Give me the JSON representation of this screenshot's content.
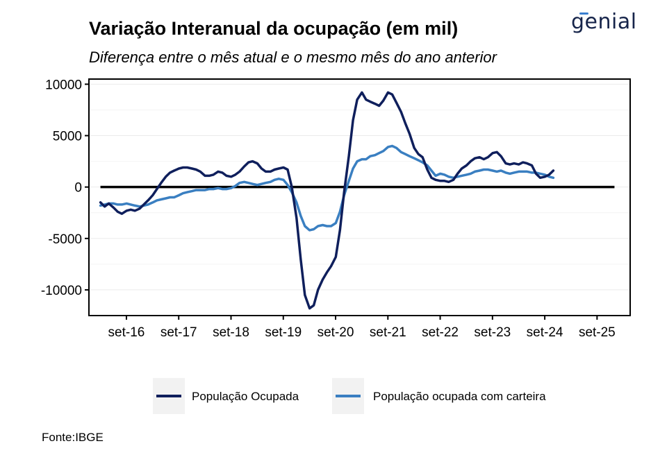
{
  "brand": {
    "logo_text": "genial",
    "accent": "#3a7fd0",
    "dark": "#16244a"
  },
  "source": "Fonte:IBGE",
  "chart_data": {
    "type": "line",
    "title": "Variação Interanual da ocupação (em mil)",
    "subtitle": "Diferença entre o mês atual e o mesmo mês do ano anterior",
    "xlabel": "",
    "ylabel": "",
    "ylim": [
      -12500,
      10500
    ],
    "xlim": [
      2015.95,
      2026.3
    ],
    "y_ticks": [
      10000,
      5000,
      0,
      -5000,
      -10000
    ],
    "y_tick_labels": [
      "10000",
      "5000",
      "0",
      "-5000",
      "-10000"
    ],
    "x_ticks": [
      2016.667,
      2017.667,
      2018.667,
      2019.667,
      2020.667,
      2021.667,
      2022.667,
      2023.667,
      2024.667,
      2025.667
    ],
    "x_tick_labels": [
      "set-16",
      "set-17",
      "set-18",
      "set-19",
      "set-20",
      "set-21",
      "set-22",
      "set-23",
      "set-24",
      "set-25"
    ],
    "reference_line": {
      "y": 0,
      "x_start": 2016.17,
      "x_end": 2026.0
    },
    "grid": true,
    "legend_position": "bottom",
    "series": [
      {
        "name": "População Ocupada",
        "color": "#0f1f5c",
        "points": [
          [
            2016.17,
            -1500
          ],
          [
            2016.25,
            -1900
          ],
          [
            2016.33,
            -1600
          ],
          [
            2016.42,
            -2000
          ],
          [
            2016.5,
            -2400
          ],
          [
            2016.58,
            -2600
          ],
          [
            2016.67,
            -2300
          ],
          [
            2016.75,
            -2200
          ],
          [
            2016.83,
            -2300
          ],
          [
            2016.92,
            -2100
          ],
          [
            2017.0,
            -1700
          ],
          [
            2017.08,
            -1300
          ],
          [
            2017.17,
            -800
          ],
          [
            2017.25,
            -200
          ],
          [
            2017.33,
            400
          ],
          [
            2017.42,
            1000
          ],
          [
            2017.5,
            1400
          ],
          [
            2017.58,
            1600
          ],
          [
            2017.67,
            1800
          ],
          [
            2017.75,
            1900
          ],
          [
            2017.83,
            1900
          ],
          [
            2017.92,
            1800
          ],
          [
            2018.0,
            1700
          ],
          [
            2018.08,
            1500
          ],
          [
            2018.17,
            1100
          ],
          [
            2018.25,
            1100
          ],
          [
            2018.33,
            1200
          ],
          [
            2018.42,
            1500
          ],
          [
            2018.5,
            1400
          ],
          [
            2018.58,
            1100
          ],
          [
            2018.67,
            1000
          ],
          [
            2018.75,
            1200
          ],
          [
            2018.83,
            1500
          ],
          [
            2018.92,
            2000
          ],
          [
            2019.0,
            2400
          ],
          [
            2019.08,
            2500
          ],
          [
            2019.17,
            2300
          ],
          [
            2019.25,
            1800
          ],
          [
            2019.33,
            1500
          ],
          [
            2019.42,
            1500
          ],
          [
            2019.5,
            1700
          ],
          [
            2019.58,
            1800
          ],
          [
            2019.67,
            1900
          ],
          [
            2019.75,
            1700
          ],
          [
            2019.83,
            0
          ],
          [
            2019.92,
            -3000
          ],
          [
            2020.0,
            -7000
          ],
          [
            2020.08,
            -10500
          ],
          [
            2020.17,
            -11800
          ],
          [
            2020.25,
            -11500
          ],
          [
            2020.33,
            -10000
          ],
          [
            2020.42,
            -9000
          ],
          [
            2020.5,
            -8300
          ],
          [
            2020.58,
            -7700
          ],
          [
            2020.67,
            -6800
          ],
          [
            2020.75,
            -4200
          ],
          [
            2020.83,
            -500
          ],
          [
            2020.92,
            3000
          ],
          [
            2021.0,
            6500
          ],
          [
            2021.08,
            8500
          ],
          [
            2021.17,
            9200
          ],
          [
            2021.25,
            8500
          ],
          [
            2021.33,
            8300
          ],
          [
            2021.42,
            8100
          ],
          [
            2021.5,
            7900
          ],
          [
            2021.58,
            8400
          ],
          [
            2021.67,
            9200
          ],
          [
            2021.75,
            9000
          ],
          [
            2021.83,
            8200
          ],
          [
            2021.92,
            7300
          ],
          [
            2022.0,
            6200
          ],
          [
            2022.08,
            5200
          ],
          [
            2022.17,
            3800
          ],
          [
            2022.25,
            3200
          ],
          [
            2022.33,
            2900
          ],
          [
            2022.42,
            1700
          ],
          [
            2022.5,
            900
          ],
          [
            2022.58,
            700
          ],
          [
            2022.67,
            600
          ],
          [
            2022.75,
            600
          ],
          [
            2022.83,
            500
          ],
          [
            2022.92,
            700
          ],
          [
            2023.0,
            1300
          ],
          [
            2023.08,
            1800
          ],
          [
            2023.17,
            2100
          ],
          [
            2023.25,
            2500
          ],
          [
            2023.33,
            2800
          ],
          [
            2023.42,
            2900
          ],
          [
            2023.5,
            2700
          ],
          [
            2023.58,
            2900
          ],
          [
            2023.67,
            3300
          ],
          [
            2023.75,
            3400
          ],
          [
            2023.83,
            3000
          ],
          [
            2023.92,
            2300
          ],
          [
            2024.0,
            2200
          ],
          [
            2024.08,
            2300
          ],
          [
            2024.17,
            2200
          ],
          [
            2024.25,
            2400
          ],
          [
            2024.33,
            2300
          ],
          [
            2024.42,
            2100
          ],
          [
            2024.5,
            1300
          ],
          [
            2024.58,
            900
          ],
          [
            2024.67,
            1000
          ],
          [
            2024.75,
            1200
          ],
          [
            2024.83,
            1600
          ]
        ]
      },
      {
        "name": "População ocupada com carteira",
        "color": "#3a7fc1",
        "points": [
          [
            2016.17,
            -1800
          ],
          [
            2016.25,
            -1700
          ],
          [
            2016.33,
            -1600
          ],
          [
            2016.42,
            -1600
          ],
          [
            2016.5,
            -1700
          ],
          [
            2016.58,
            -1700
          ],
          [
            2016.67,
            -1600
          ],
          [
            2016.75,
            -1700
          ],
          [
            2016.83,
            -1800
          ],
          [
            2016.92,
            -1900
          ],
          [
            2017.0,
            -1800
          ],
          [
            2017.08,
            -1700
          ],
          [
            2017.17,
            -1500
          ],
          [
            2017.25,
            -1300
          ],
          [
            2017.33,
            -1200
          ],
          [
            2017.42,
            -1100
          ],
          [
            2017.5,
            -1000
          ],
          [
            2017.58,
            -1000
          ],
          [
            2017.67,
            -800
          ],
          [
            2017.75,
            -600
          ],
          [
            2017.83,
            -500
          ],
          [
            2017.92,
            -400
          ],
          [
            2018.0,
            -300
          ],
          [
            2018.08,
            -300
          ],
          [
            2018.17,
            -300
          ],
          [
            2018.25,
            -200
          ],
          [
            2018.33,
            -200
          ],
          [
            2018.42,
            -100
          ],
          [
            2018.5,
            -200
          ],
          [
            2018.58,
            -200
          ],
          [
            2018.67,
            -100
          ],
          [
            2018.75,
            100
          ],
          [
            2018.83,
            400
          ],
          [
            2018.92,
            500
          ],
          [
            2019.0,
            400
          ],
          [
            2019.08,
            300
          ],
          [
            2019.17,
            200
          ],
          [
            2019.25,
            300
          ],
          [
            2019.33,
            400
          ],
          [
            2019.42,
            500
          ],
          [
            2019.5,
            700
          ],
          [
            2019.58,
            800
          ],
          [
            2019.67,
            700
          ],
          [
            2019.75,
            200
          ],
          [
            2019.83,
            -500
          ],
          [
            2019.92,
            -1500
          ],
          [
            2020.0,
            -2800
          ],
          [
            2020.08,
            -3800
          ],
          [
            2020.17,
            -4200
          ],
          [
            2020.25,
            -4100
          ],
          [
            2020.33,
            -3800
          ],
          [
            2020.42,
            -3700
          ],
          [
            2020.5,
            -3800
          ],
          [
            2020.58,
            -3800
          ],
          [
            2020.67,
            -3500
          ],
          [
            2020.75,
            -2400
          ],
          [
            2020.83,
            -800
          ],
          [
            2020.92,
            600
          ],
          [
            2021.0,
            1800
          ],
          [
            2021.08,
            2500
          ],
          [
            2021.17,
            2700
          ],
          [
            2021.25,
            2700
          ],
          [
            2021.33,
            3000
          ],
          [
            2021.42,
            3100
          ],
          [
            2021.5,
            3300
          ],
          [
            2021.58,
            3500
          ],
          [
            2021.67,
            3900
          ],
          [
            2021.75,
            4000
          ],
          [
            2021.83,
            3800
          ],
          [
            2021.92,
            3400
          ],
          [
            2022.0,
            3200
          ],
          [
            2022.08,
            3000
          ],
          [
            2022.17,
            2800
          ],
          [
            2022.25,
            2600
          ],
          [
            2022.33,
            2400
          ],
          [
            2022.42,
            2100
          ],
          [
            2022.5,
            1600
          ],
          [
            2022.58,
            1100
          ],
          [
            2022.67,
            1300
          ],
          [
            2022.75,
            1200
          ],
          [
            2022.83,
            1000
          ],
          [
            2022.92,
            900
          ],
          [
            2023.0,
            1000
          ],
          [
            2023.08,
            1100
          ],
          [
            2023.17,
            1200
          ],
          [
            2023.25,
            1300
          ],
          [
            2023.33,
            1500
          ],
          [
            2023.42,
            1600
          ],
          [
            2023.5,
            1700
          ],
          [
            2023.58,
            1700
          ],
          [
            2023.67,
            1600
          ],
          [
            2023.75,
            1500
          ],
          [
            2023.83,
            1600
          ],
          [
            2023.92,
            1400
          ],
          [
            2024.0,
            1300
          ],
          [
            2024.08,
            1400
          ],
          [
            2024.17,
            1500
          ],
          [
            2024.25,
            1500
          ],
          [
            2024.33,
            1500
          ],
          [
            2024.42,
            1400
          ],
          [
            2024.5,
            1400
          ],
          [
            2024.58,
            1300
          ],
          [
            2024.67,
            1200
          ],
          [
            2024.75,
            1000
          ],
          [
            2024.83,
            900
          ]
        ]
      }
    ]
  }
}
